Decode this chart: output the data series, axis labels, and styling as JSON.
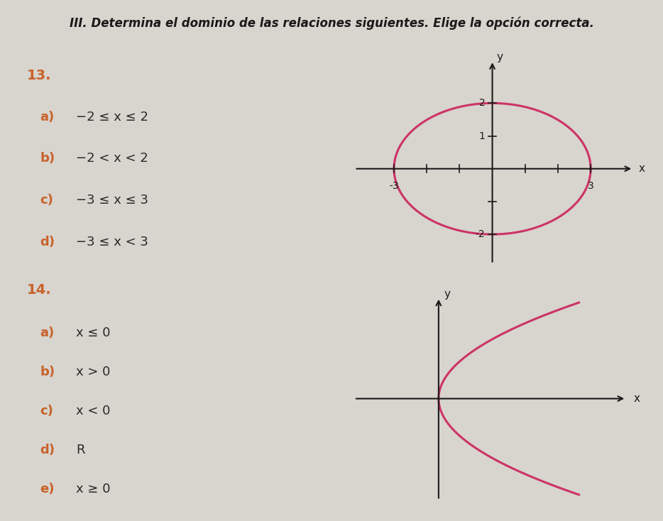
{
  "title": "III. Determina el dominio de las relaciones siguientes. Elige la opción correcta.",
  "title_fontsize": 12,
  "bg_color": "#d8d4ce",
  "text_color": "#2a2a2a",
  "orange_color": "#c8622a",
  "pink_color": "#cc3366",
  "dark_color": "#1a1a1a",
  "q13_label": "13.",
  "q13_options": [
    "a)  −2 ≤ x ≤ 2",
    "b)  −2 < x < 2",
    "c)  −3 ≤ x ≤ 3",
    "d)  −3 ≤ x < 3"
  ],
  "q13_letter_colors": [
    "#c8622a",
    "#c8622a",
    "#c8622a",
    "#c8622a"
  ],
  "q13_text_colors": [
    "#2a2a2a",
    "#2a2a2a",
    "#2a2a2a",
    "#2a2a2a"
  ],
  "q14_label": "14.",
  "q14_options": [
    "a)  x ≤ 0",
    "b)  x > 0",
    "c)  x < 0",
    "d)  R",
    "e)  x ≥ 0"
  ],
  "q14_letter_colors": [
    "#c8622a",
    "#c8622a",
    "#c8622a",
    "#c8622a",
    "#c8622a"
  ],
  "q14_text_colors": [
    "#2a2a2a",
    "#2a2a2a",
    "#2a2a2a",
    "#2a2a2a",
    "#2a2a2a"
  ],
  "ellipse_a": 3,
  "ellipse_b": 2
}
